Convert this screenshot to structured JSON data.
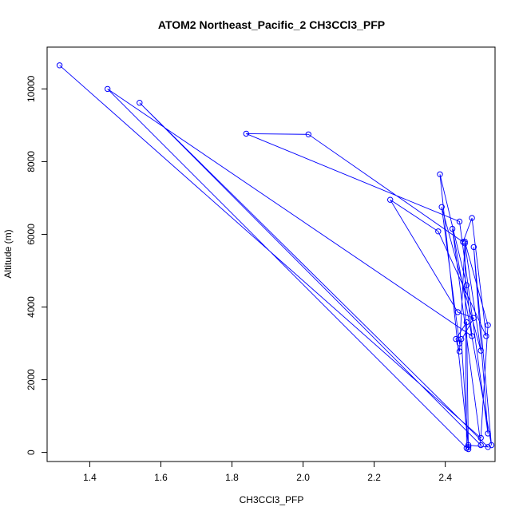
{
  "chart_data": {
    "type": "line",
    "title": "ATOM2 Northeast_Pacific_2 CH3CCl3_PFP",
    "xlabel": "CH3CCl3_PFP",
    "ylabel": "Altitude (m)",
    "xticks": [
      "1.4",
      "1.6",
      "1.8",
      "2.0",
      "2.2",
      "2.4"
    ],
    "yticks": [
      "0",
      "2000",
      "4000",
      "6000",
      "8000",
      "10000"
    ],
    "xlim": [
      1.28,
      2.54
    ],
    "ylim": [
      -250,
      11150
    ],
    "grid": false,
    "colors": {
      "series": "#0000ff",
      "axis": "#000000",
      "background": "#ffffff"
    },
    "series": [
      {
        "marker": "open-circle",
        "x": [
          1.315,
          2.5,
          2.52,
          2.455,
          2.46,
          1.45,
          2.475,
          2.46,
          2.385,
          2.465,
          2.465,
          2.52,
          1.54,
          2.5,
          2.42,
          2.53,
          2.48,
          2.52,
          2.44,
          1.84,
          2.015,
          2.45,
          2.475,
          2.515,
          2.38,
          2.245,
          2.435,
          2.48,
          2.44,
          2.39,
          2.5,
          2.455,
          2.44,
          2.43,
          2.46,
          2.465,
          2.445
        ],
        "y": [
          10650,
          400,
          3500,
          5800,
          120,
          10000,
          3200,
          4600,
          7650,
          150,
          200,
          150,
          9620,
          200,
          6150,
          200,
          5650,
          520,
          6350,
          8770,
          8750,
          5790,
          6450,
          3200,
          6080,
          6950,
          3860,
          3700,
          3000,
          6750,
          2800,
          5750,
          2780,
          3120,
          3580,
          90,
          3120
        ]
      }
    ]
  }
}
